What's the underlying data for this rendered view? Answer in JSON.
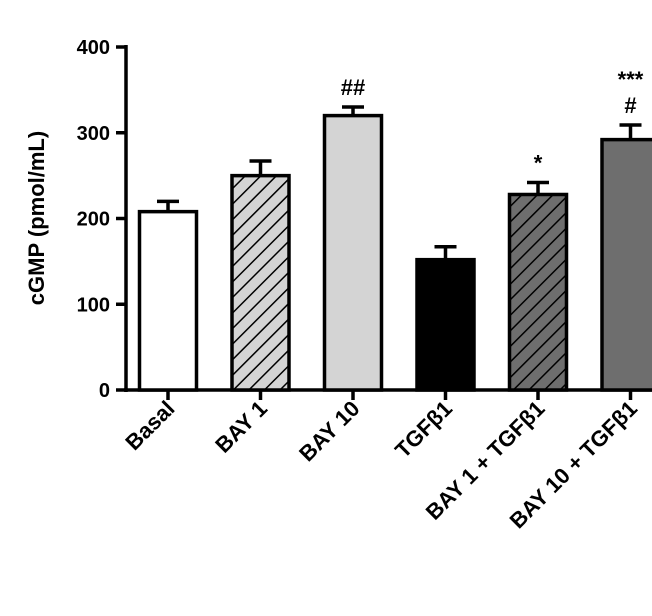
{
  "chart_data": {
    "type": "bar",
    "ylabel": "cGMP (pmol/mL)",
    "ylim": [
      0,
      400
    ],
    "yticks": [
      0,
      100,
      200,
      300,
      400
    ],
    "categories": [
      "Basal",
      "BAY 1",
      "BAY 10",
      "TGFβ1",
      "BAY 1 + TGFβ1",
      "BAY 10 + TGFβ1"
    ],
    "values": [
      208,
      250,
      320,
      152,
      228,
      292
    ],
    "errors": [
      12,
      17,
      10,
      15,
      14,
      17
    ],
    "fills": [
      {
        "color": "#ffffff",
        "pattern": "none"
      },
      {
        "color": "#d4d4d4",
        "pattern": "hatch"
      },
      {
        "color": "#d4d4d4",
        "pattern": "none"
      },
      {
        "color": "#000000",
        "pattern": "none"
      },
      {
        "color": "#6e6e6e",
        "pattern": "hatch"
      },
      {
        "color": "#6e6e6e",
        "pattern": "none"
      }
    ],
    "annotations": [
      {
        "category": "BAY 10",
        "lines": [
          "##"
        ]
      },
      {
        "category": "BAY 1 + TGFβ1",
        "lines": [
          "*"
        ]
      },
      {
        "category": "BAY 10 + TGFβ1",
        "lines": [
          "***",
          "#"
        ]
      }
    ],
    "grid": false,
    "legend": "none"
  }
}
